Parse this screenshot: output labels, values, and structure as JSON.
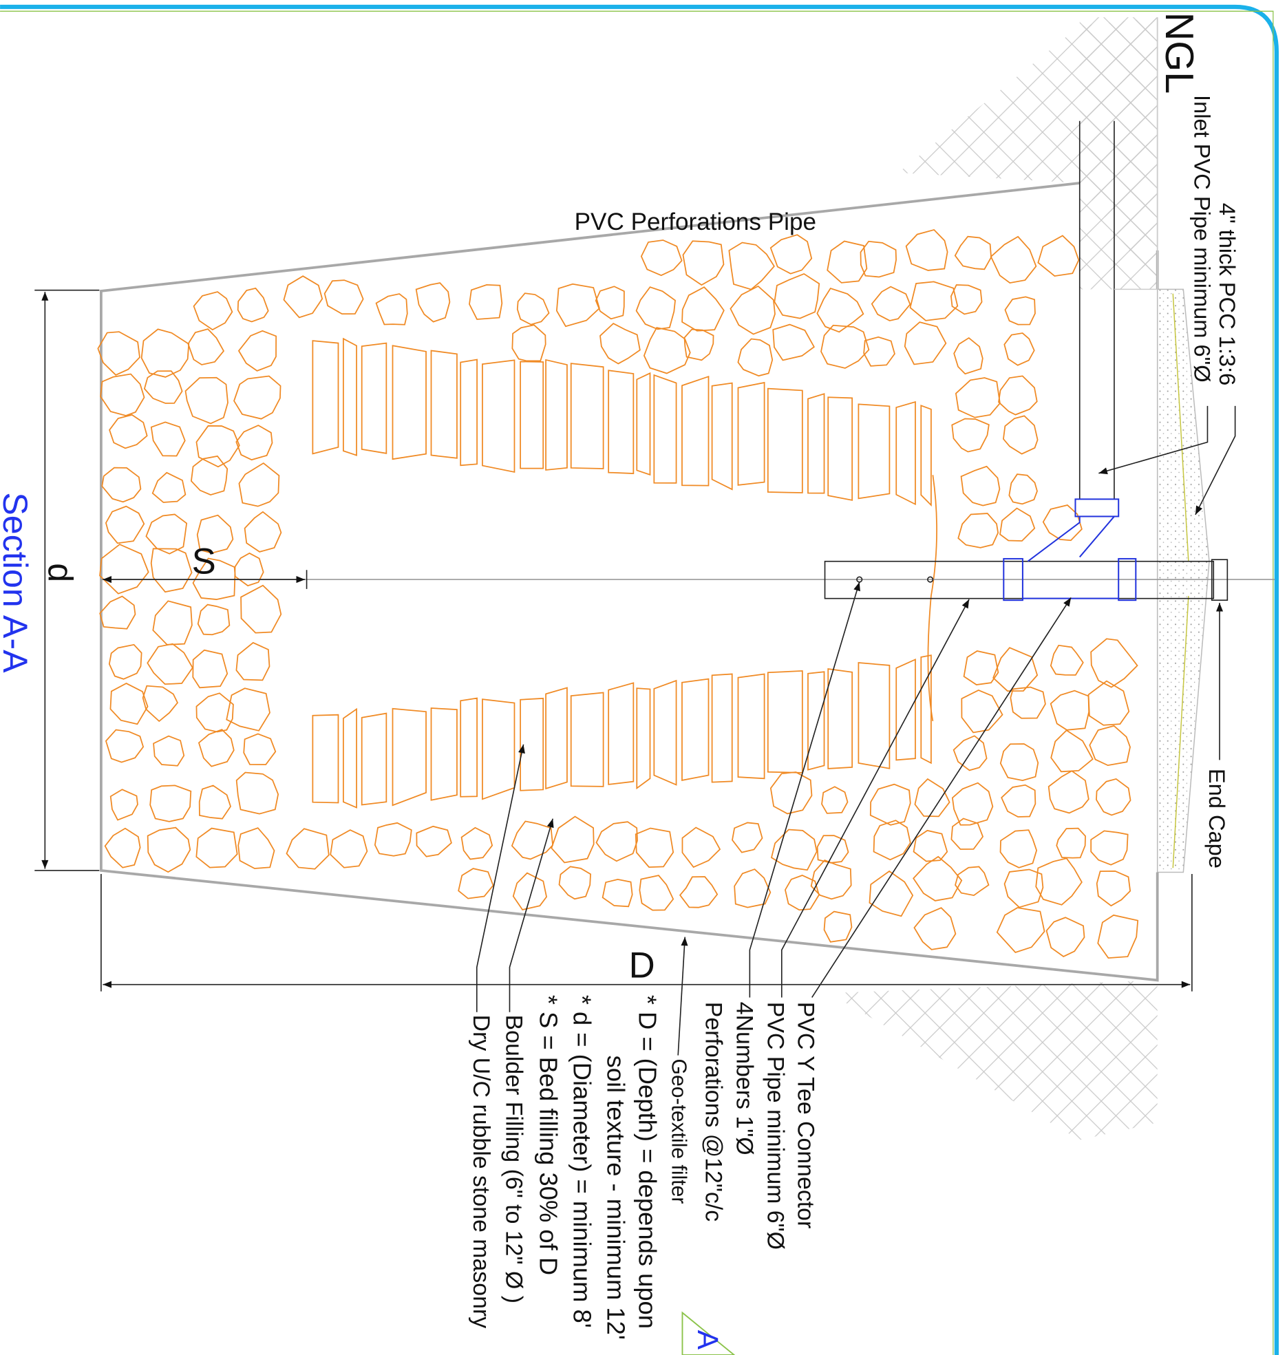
{
  "drawing": {
    "title": "Section A-A",
    "section_marker": "A",
    "ground_level": "NGL",
    "top_labels": {
      "inlet": "Inlet PVC Pipe minimum 6\"Ø",
      "pcc": "4\" thick PCC 1:3:6",
      "perforated_pipe": "PVC Perforations Pipe",
      "end_cap": "End Cape"
    },
    "dimensions": {
      "diameter": "d",
      "bed": "S",
      "depth": "D"
    },
    "callouts": [
      "PVC Y Tee Connector",
      "PVC Pipe minimum 6\"Ø",
      "4Numbers 1\"Ø",
      "Perforations @12\"c/c",
      "Geo-textile filter"
    ],
    "notes": [
      "* D = (Depth) = depends upon",
      "soil texture - minimum 12'",
      "* d = (Diameter) = minimum 8'",
      "* S = Bed filling 30% of D",
      "Boulder Filling (6\" to 12\" Ø )",
      "Dry U/C rubble stone masonry"
    ]
  }
}
